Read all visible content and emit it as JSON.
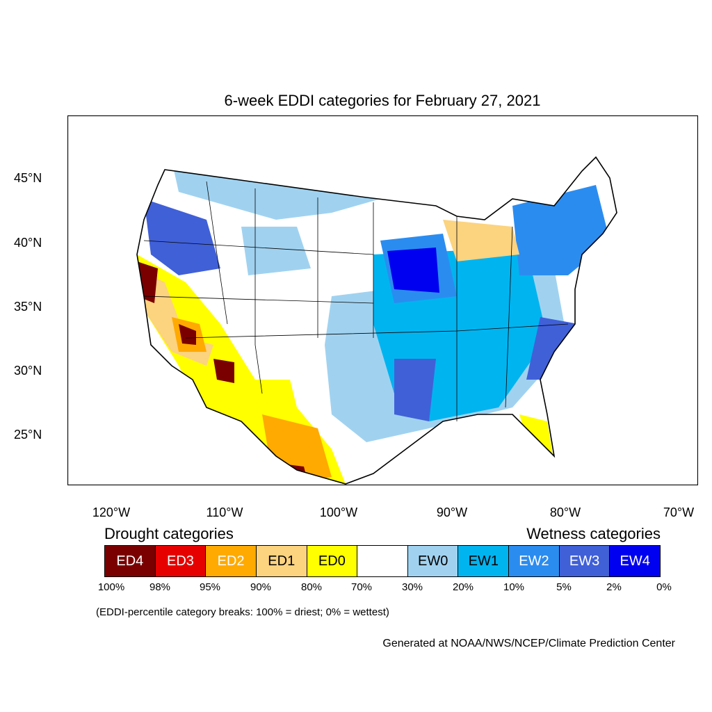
{
  "title": "6-week EDDI categories for February 27, 2021",
  "lat_labels": [
    "45°N",
    "40°N",
    "35°N",
    "30°N",
    "25°N"
  ],
  "lon_labels": [
    "120°W",
    "110°W",
    "100°W",
    "90°W",
    "80°W",
    "70°W"
  ],
  "drought_heading": "Drought categories",
  "wetness_heading": "Wetness categories",
  "categories": [
    {
      "label": "ED4",
      "color": "#7a0000",
      "text_color": "#ffffff"
    },
    {
      "label": "ED3",
      "color": "#e60000",
      "text_color": "#ffffff"
    },
    {
      "label": "ED2",
      "color": "#ffaa00",
      "text_color": "#ffffff"
    },
    {
      "label": "ED1",
      "color": "#fcd37f",
      "text_color": "#000000"
    },
    {
      "label": "ED0",
      "color": "#ffff00",
      "text_color": "#000000"
    },
    {
      "label": "",
      "color": "#ffffff",
      "text_color": "#000000"
    },
    {
      "label": "EW0",
      "color": "#a0d2f0",
      "text_color": "#000000"
    },
    {
      "label": "EW1",
      "color": "#00b4f0",
      "text_color": "#000000"
    },
    {
      "label": "EW2",
      "color": "#2b8cf0",
      "text_color": "#ffffff"
    },
    {
      "label": "EW3",
      "color": "#4060d8",
      "text_color": "#ffffff"
    },
    {
      "label": "EW4",
      "color": "#0000f0",
      "text_color": "#ffffff"
    }
  ],
  "percent_breaks": [
    "100%",
    "98%",
    "95%",
    "90%",
    "80%",
    "70%",
    "30%",
    "20%",
    "10%",
    "5%",
    "2%",
    "0%"
  ],
  "note": "(EDDI-percentile category breaks: 100% = driest; 0% = wettest)",
  "credit": "Generated at NOAA/NWS/NCEP/Climate Prediction Center"
}
